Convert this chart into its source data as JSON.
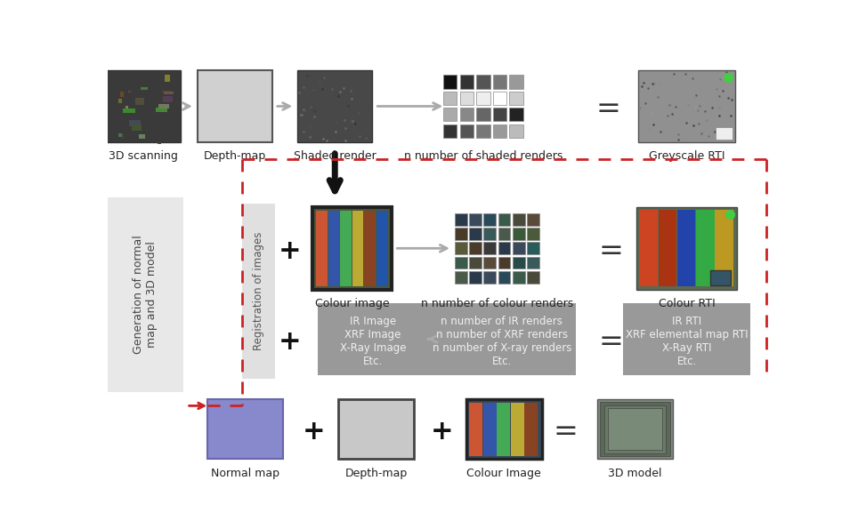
{
  "bg_color": "#ffffff",
  "row1_labels": [
    "3D scanning",
    "Depth-map",
    "Shaded render",
    "n number of shaded renders",
    "Greyscale RTI"
  ],
  "row2_labels": [
    "Colour image",
    "n number of colour renders",
    "Colour RTI"
  ],
  "row3_labels": [
    "IR Image\nXRF Image\nX-Ray Image\nEtc.",
    "n number of IR renders\nn number of XRF renders\nn number of X-ray renders\nEtc.",
    "IR RTI\nXRF elemental map RTI\nX-Ray RTI\nEtc."
  ],
  "row4_labels": [
    "Normal map",
    "Depth-map",
    "Colour Image",
    "3D model"
  ],
  "left_box_label": "Generation of normal\nmap and 3D model",
  "reg_label": "Registration of images",
  "title_fontsize": 9,
  "body_fontsize": 8.5,
  "gray_shades_row1": [
    "#111111",
    "#333333",
    "#555555",
    "#777777",
    "#999999",
    "#bbbbbb",
    "#dddddd",
    "#eeeeee",
    "#ffffff",
    "#cccccc",
    "#aaaaaa",
    "#888888",
    "#666666",
    "#444444",
    "#222222",
    "#333333",
    "#555555",
    "#777777",
    "#999999",
    "#bbbbbb"
  ],
  "color_grid_shades": [
    "#2a3a4a",
    "#3a4a5a",
    "#2a4a5a",
    "#3a5a4a",
    "#4a4a3a",
    "#5a4a3a",
    "#4a3a2a",
    "#2a3a4a",
    "#3a5a5a",
    "#4a5a4a",
    "#3a5a3a",
    "#4a5a3a",
    "#5a5a3a",
    "#4a3a2a",
    "#3a3a3a",
    "#2a3a4a",
    "#3a4a5a",
    "#2a5a5a",
    "#3a5a4a",
    "#4a4a3a",
    "#5a4a3a",
    "#4a3a2a",
    "#2a4a4a",
    "#3a5a5a",
    "#4a5a4a"
  ]
}
